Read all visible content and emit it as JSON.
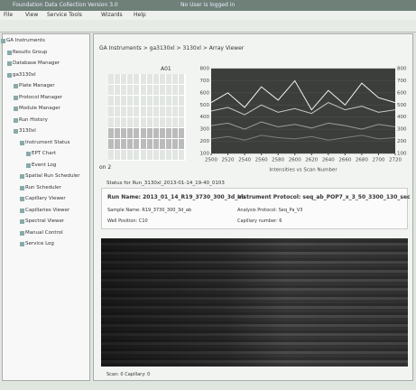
{
  "window": {
    "title": "Foundation Data Collection Version 3.0",
    "user": "No User is logged in"
  },
  "menu": [
    "File",
    "View",
    "Service Tools",
    "Wizards",
    "Help"
  ],
  "tree": [
    {
      "label": "GA Instruments",
      "level": 0
    },
    {
      "label": "Results Group",
      "level": 1
    },
    {
      "label": "Database Manager",
      "level": 1
    },
    {
      "label": "ga3130xl",
      "level": 1
    },
    {
      "label": "Plate Manager",
      "level": 2
    },
    {
      "label": "Protocol Manager",
      "level": 2
    },
    {
      "label": "Module Manager",
      "level": 2
    },
    {
      "label": "Run History",
      "level": 2
    },
    {
      "label": "3130xl",
      "level": 2
    },
    {
      "label": "Instrument Status",
      "level": 3
    },
    {
      "label": "EPT Chart",
      "level": 4
    },
    {
      "label": "Event Log",
      "level": 4
    },
    {
      "label": "Spatial Run Scheduler",
      "level": 3
    },
    {
      "label": "Run Scheduler",
      "level": 3
    },
    {
      "label": "Capillary Viewer",
      "level": 3
    },
    {
      "label": "Capillaries Viewer",
      "level": 3
    },
    {
      "label": "Spectral Viewer",
      "level": 3
    },
    {
      "label": "Manual Control",
      "level": 3
    },
    {
      "label": "Service Log",
      "level": 3
    }
  ],
  "breadcrumb": "GA Instruments > ga3130xl > 3130xl > Array Viewer",
  "plate": {
    "well": "A01",
    "cap": "on 2"
  },
  "plot": {
    "x_label": "Intensities vs Scan Number",
    "xlim": [
      2500,
      2720
    ],
    "ylim": [
      100,
      800
    ],
    "xticks": [
      2500,
      2520,
      2540,
      2560,
      2580,
      2600,
      2620,
      2640,
      2660,
      2680,
      2700,
      2720
    ],
    "yticks": [
      100,
      200,
      300,
      400,
      500,
      600,
      700,
      800
    ],
    "x": [
      2500,
      2520,
      2540,
      2560,
      2580,
      2600,
      2620,
      2640,
      2660,
      2680,
      2700,
      2720
    ],
    "series": [
      {
        "color": "#f4f4f4",
        "values": [
          520,
          600,
          480,
          650,
          540,
          700,
          460,
          620,
          500,
          680,
          560,
          520
        ]
      },
      {
        "color": "#c8c8c8",
        "values": [
          450,
          480,
          420,
          500,
          440,
          470,
          430,
          520,
          460,
          490,
          440,
          460
        ]
      },
      {
        "color": "#9a9a9a",
        "values": [
          330,
          350,
          300,
          360,
          320,
          340,
          310,
          350,
          330,
          300,
          340,
          320
        ]
      },
      {
        "color": "#7d7d7d",
        "values": [
          220,
          240,
          210,
          250,
          230,
          220,
          240,
          210,
          230,
          250,
          220,
          230
        ]
      }
    ]
  },
  "status_title": "Status for Run_3130xl_2013-01-14_19-40_0103",
  "run": {
    "name": "Run Name: 2013_01_14_R19_3730_300_3d_ab",
    "protocol": "Instrument Protocol: seq_ab_POP7_x_3_50_3300_130_sec",
    "sample": "Sample Name: R19_3730_300_3d_ab",
    "analysis": "Analysis Protocol: Seq_Pa_V3",
    "well": "Well Position: C10",
    "capillary": "Capillary number: 6"
  },
  "footer": "Scan: 0   Capillary: 0"
}
